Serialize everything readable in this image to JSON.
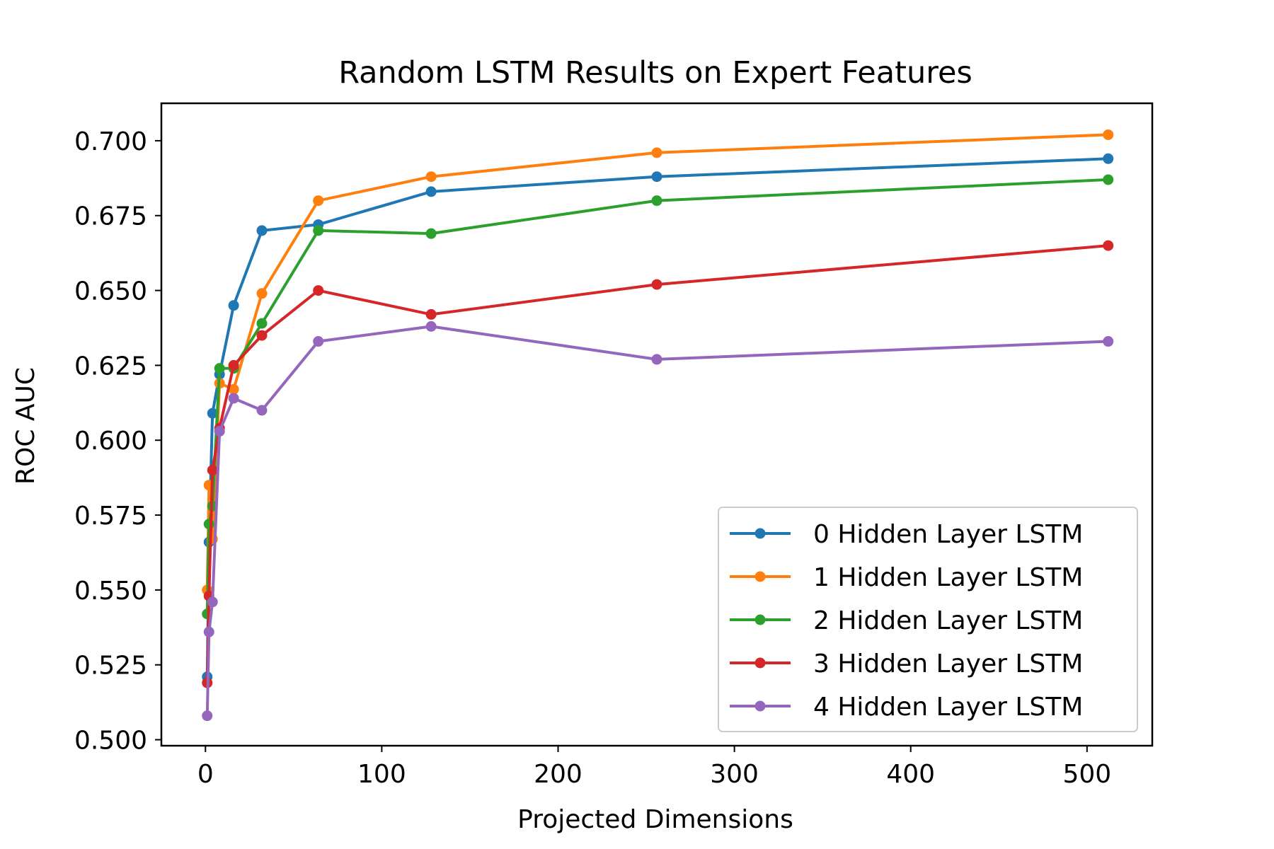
{
  "chart_data": {
    "type": "line",
    "title": "Random LSTM Results on Expert Features",
    "xlabel": "Projected Dimensions",
    "ylabel": "ROC AUC",
    "xlim": [
      -25,
      537
    ],
    "ylim": [
      0.498,
      0.7125
    ],
    "xticks": [
      0,
      100,
      200,
      300,
      400,
      500
    ],
    "xtick_labels": [
      "0",
      "100",
      "200",
      "300",
      "400",
      "500"
    ],
    "yticks": [
      0.5,
      0.525,
      0.55,
      0.575,
      0.6,
      0.625,
      0.65,
      0.675,
      0.7
    ],
    "ytick_labels": [
      "0.500",
      "0.525",
      "0.550",
      "0.575",
      "0.600",
      "0.625",
      "0.650",
      "0.675",
      "0.700"
    ],
    "grid": false,
    "legend_position": "lower-right",
    "x": [
      1,
      2,
      4,
      8,
      16,
      32,
      64,
      128,
      256,
      512
    ],
    "series": [
      {
        "name": "0 Hidden Layer LSTM",
        "color": "#1f77b4",
        "values": [
          0.521,
          0.566,
          0.609,
          0.622,
          0.645,
          0.67,
          0.672,
          0.683,
          0.688,
          0.694
        ]
      },
      {
        "name": "1 Hidden Layer LSTM",
        "color": "#ff7f0e",
        "values": [
          0.55,
          0.585,
          0.567,
          0.619,
          0.617,
          0.649,
          0.68,
          0.688,
          0.696,
          0.702
        ]
      },
      {
        "name": "2 Hidden Layer LSTM",
        "color": "#2ca02c",
        "values": [
          0.542,
          0.572,
          0.578,
          0.624,
          0.624,
          0.639,
          0.67,
          0.669,
          0.68,
          0.687
        ]
      },
      {
        "name": "3 Hidden Layer LSTM",
        "color": "#d62728",
        "values": [
          0.519,
          0.548,
          0.59,
          0.604,
          0.625,
          0.635,
          0.65,
          0.642,
          0.652,
          0.665
        ]
      },
      {
        "name": "4 Hidden Layer LSTM",
        "color": "#9467bd",
        "values": [
          0.508,
          0.536,
          0.546,
          0.603,
          0.614,
          0.61,
          0.633,
          0.638,
          0.627,
          0.633
        ]
      }
    ]
  }
}
